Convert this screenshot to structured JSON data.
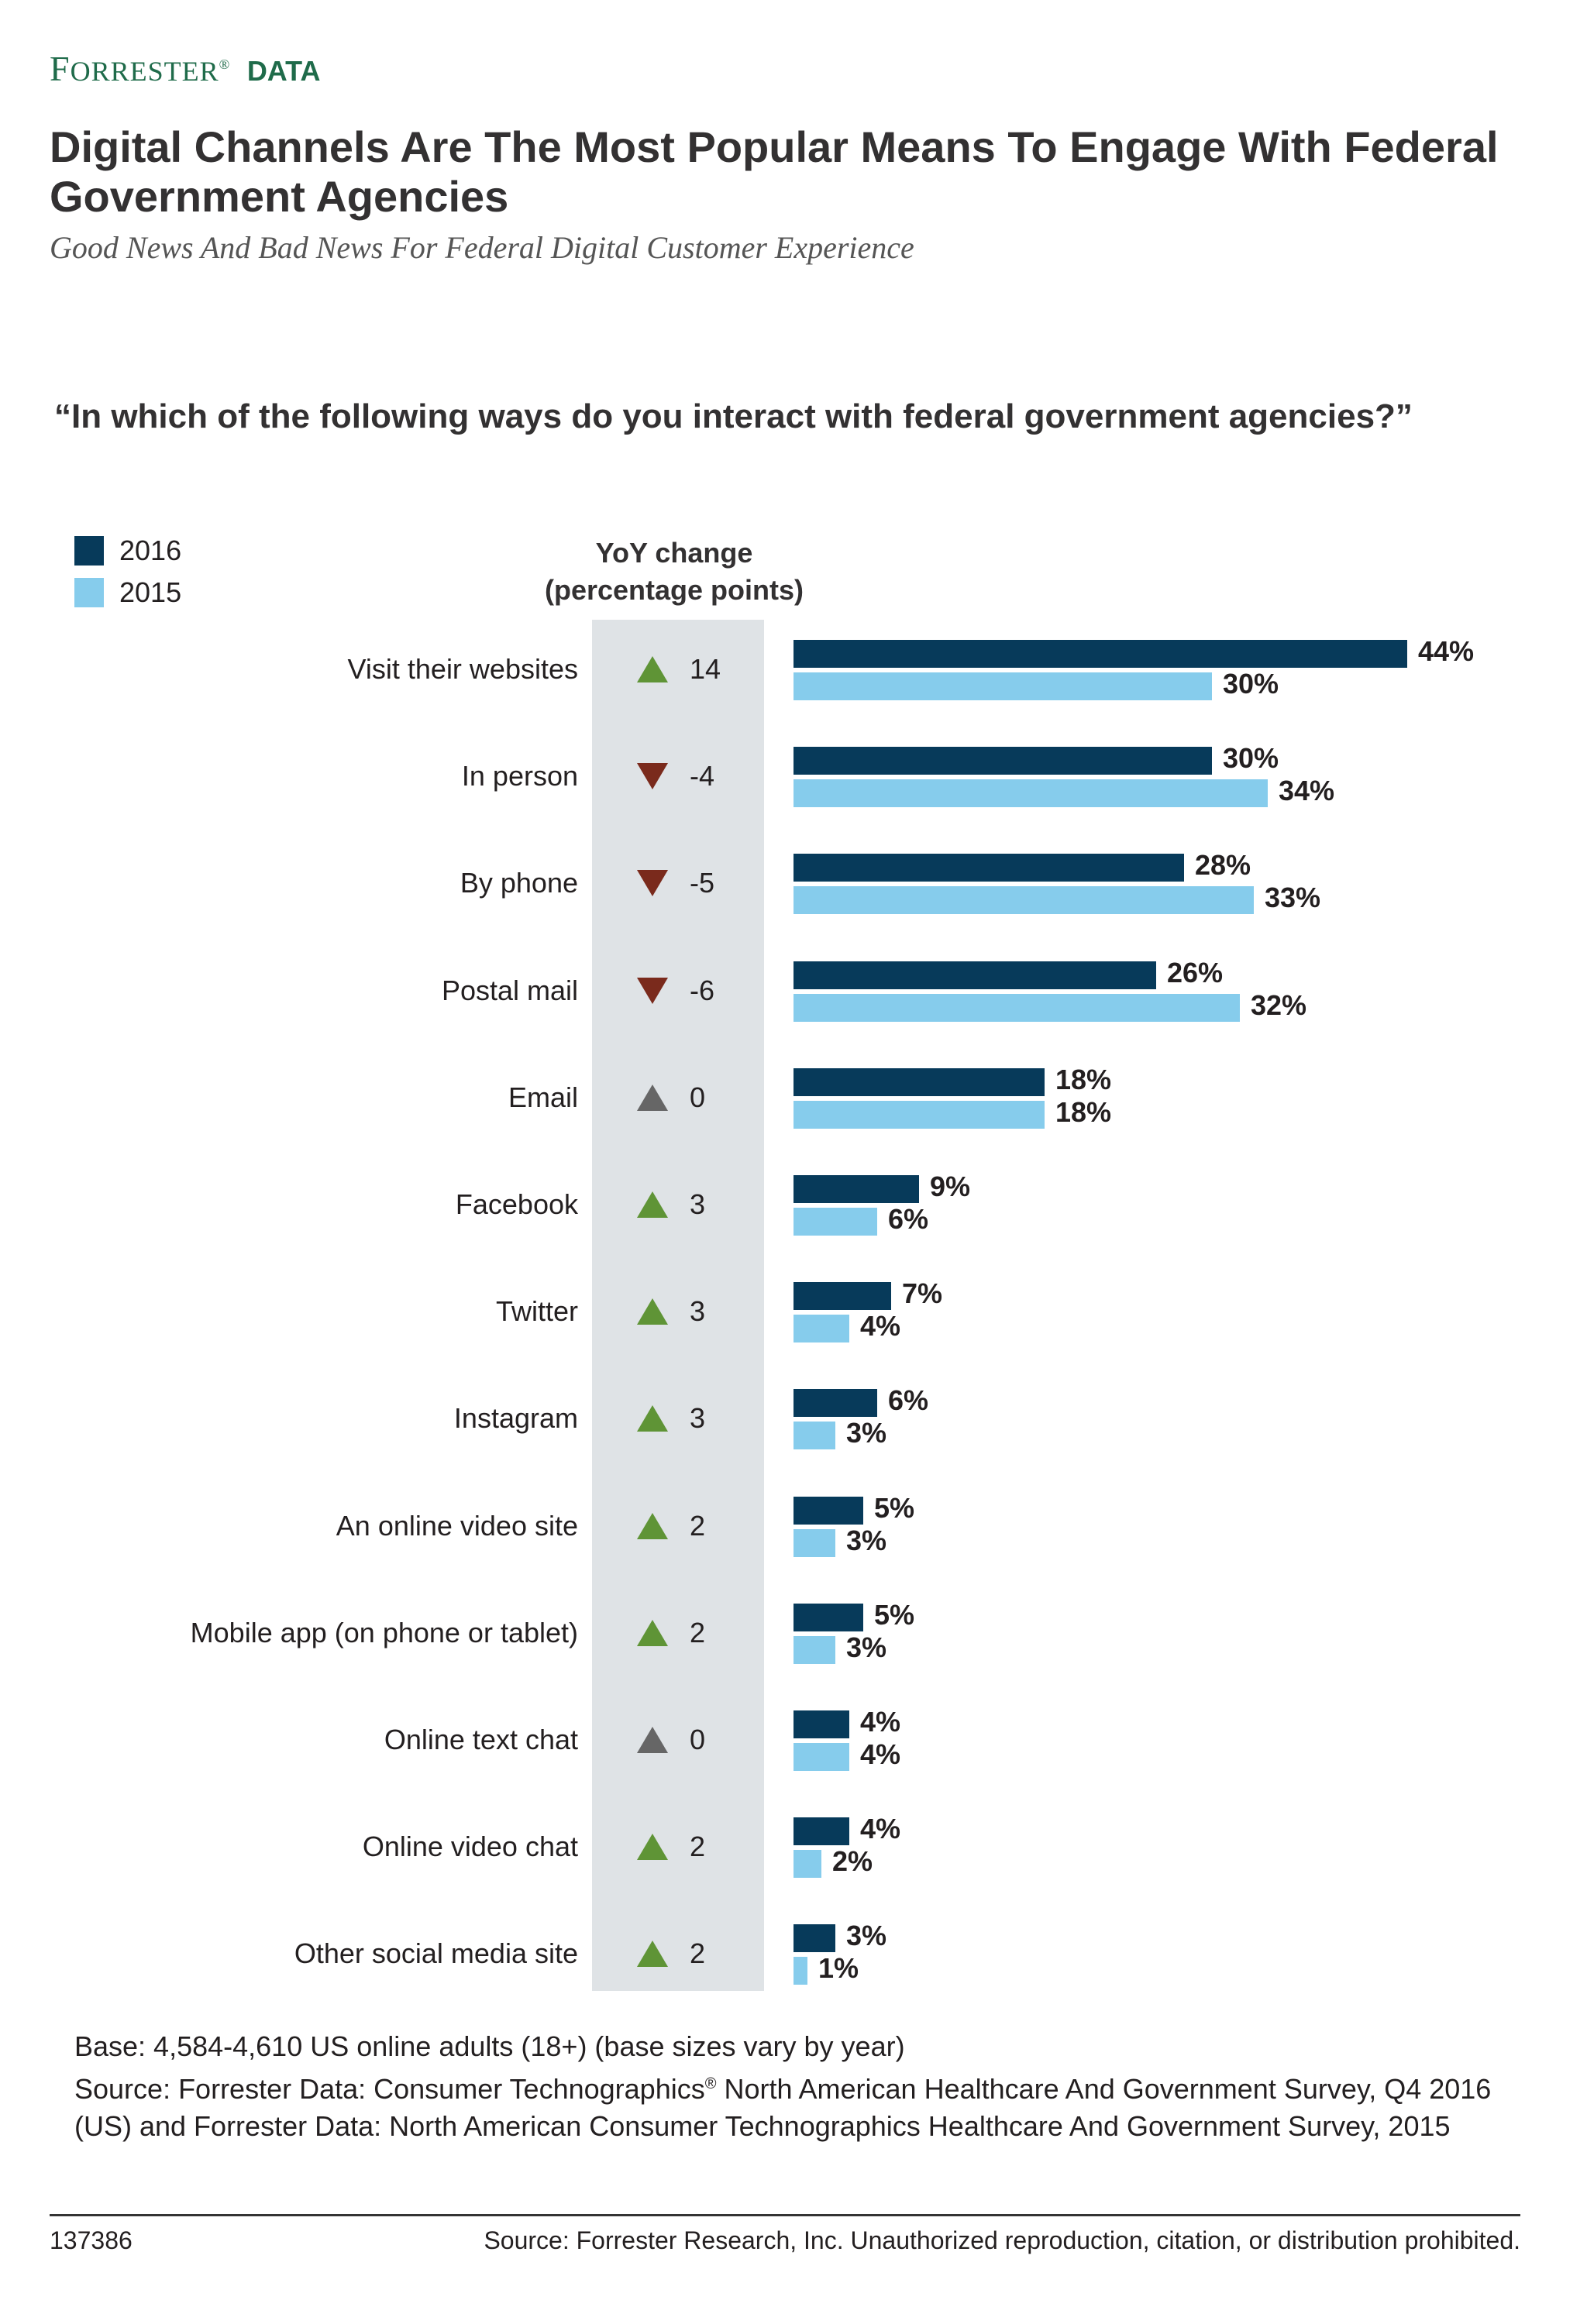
{
  "brand": {
    "name": "Forrester",
    "suffix": "DATA",
    "registered": "®"
  },
  "title": "Digital Channels Are The Most Popular Means To Engage With Federal Government Agencies",
  "subtitle": "Good News And Bad News For Federal Digital Customer Experience",
  "question": "“In which of the following ways do you interact with federal government agencies?”",
  "legend": [
    {
      "label": "2016",
      "color": "#073a5a"
    },
    {
      "label": "2015",
      "color": "#86ccec"
    }
  ],
  "yoy_header": {
    "line1": "YoY change",
    "line2": "(percentage points)"
  },
  "colors": {
    "up": "#5f9436",
    "down": "#7a2a1c",
    "flat": "#666666",
    "band": "#dfe3e6"
  },
  "chart_data": {
    "type": "bar",
    "orientation": "horizontal",
    "categories": [
      "Visit their websites",
      "In person",
      "By phone",
      "Postal mail",
      "Email",
      "Facebook",
      "Twitter",
      "Instagram",
      "An online video site",
      "Mobile app (on phone or tablet)",
      "Online text chat",
      "Online video chat",
      "Other social media site"
    ],
    "series": [
      {
        "name": "2016",
        "values": [
          44,
          30,
          28,
          26,
          18,
          9,
          7,
          6,
          5,
          5,
          4,
          4,
          3
        ],
        "color": "#073a5a"
      },
      {
        "name": "2015",
        "values": [
          30,
          34,
          33,
          32,
          18,
          6,
          4,
          3,
          3,
          3,
          4,
          2,
          1
        ],
        "color": "#86ccec"
      }
    ],
    "yoy_change": [
      "14",
      "-4",
      "-5",
      "-6",
      "0",
      "3",
      "3",
      "3",
      "2",
      "2",
      "0",
      "2",
      "2"
    ],
    "yoy_direction": [
      "up",
      "down",
      "down",
      "down",
      "flat",
      "up",
      "up",
      "up",
      "up",
      "up",
      "flat",
      "up",
      "up"
    ],
    "value_suffix": "%",
    "xlim": [
      0,
      44
    ],
    "grid": false,
    "legend_position": "top-left"
  },
  "footnote": {
    "base": "Base: 4,584-4,610 US online adults (18+) (base sizes vary by year)",
    "source_a": "Source: Forrester Data: Consumer Technographics",
    "source_reg": "®",
    "source_b": " North American Healthcare And Government Survey, Q4 2016 (US) and Forrester Data: North American Consumer Technographics Healthcare And Government Survey, 2015"
  },
  "footer": {
    "id": "137386",
    "source": "Source: Forrester Research, Inc. Unauthorized reproduction, citation, or distribution prohibited."
  }
}
